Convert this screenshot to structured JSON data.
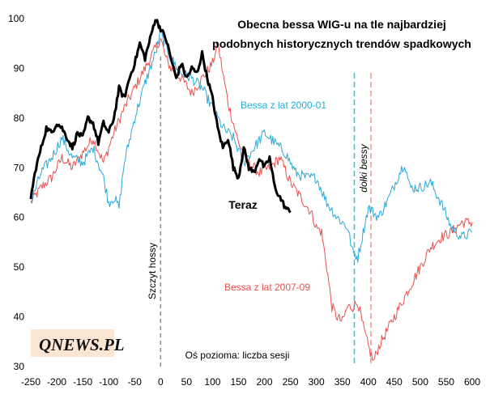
{
  "chart_data": {
    "type": "line",
    "title": [
      "Obecna bessa WIG-u na tle najbardziej",
      "podobnych historycznych trendów spadkowych"
    ],
    "xlabel": "Oś pozioma: liczba sesji",
    "ylabel": "",
    "xlim": [
      -250,
      600
    ],
    "ylim": [
      30,
      100
    ],
    "xticks": [
      "-250",
      "-200",
      "-150",
      "-100",
      "-50",
      "0",
      "50",
      "100",
      "150",
      "200",
      "250",
      "300",
      "350",
      "400",
      "450",
      "500",
      "550",
      "600"
    ],
    "yticks": [
      "30",
      "40",
      "50",
      "60",
      "70",
      "80",
      "90",
      "100"
    ],
    "series": [
      {
        "name": "Bessa z lat 2007-09",
        "color": "#e8504c",
        "x": [
          -250,
          -230,
          -210,
          -190,
          -170,
          -150,
          -130,
          -110,
          -90,
          -70,
          -50,
          -30,
          -10,
          0,
          10,
          20,
          40,
          60,
          80,
          100,
          110,
          120,
          130,
          150,
          170,
          190,
          210,
          230,
          250,
          270,
          290,
          300,
          310,
          320,
          330,
          340,
          350,
          360,
          370,
          380,
          390,
          400,
          410,
          420,
          440,
          460,
          480,
          500,
          520,
          540,
          560,
          580,
          600
        ],
        "y": [
          63,
          66,
          68,
          72,
          70,
          73,
          76,
          71,
          77,
          82,
          86,
          90,
          94,
          96,
          92,
          90,
          88,
          85,
          88,
          91,
          95,
          89,
          83,
          75,
          71,
          69,
          70,
          72,
          67,
          64,
          61,
          58,
          57,
          50,
          42,
          40,
          39,
          42,
          42,
          43,
          38,
          34,
          31,
          34,
          38,
          42,
          46,
          50,
          54,
          56,
          57,
          59,
          59
        ]
      },
      {
        "name": "Bessa z lat 2000-01",
        "color": "#2aa9d8",
        "x": [
          -250,
          -230,
          -210,
          -190,
          -170,
          -150,
          -130,
          -110,
          -100,
          -90,
          -80,
          -70,
          -50,
          -30,
          -10,
          0,
          20,
          40,
          60,
          80,
          100,
          120,
          140,
          160,
          180,
          200,
          220,
          240,
          260,
          280,
          300,
          320,
          340,
          360,
          370,
          380,
          390,
          400,
          410,
          420,
          440,
          460,
          470,
          480,
          500,
          520,
          540,
          560,
          580,
          600
        ],
        "y": [
          63,
          69,
          72,
          76,
          72,
          71,
          74,
          68,
          63,
          64,
          62,
          71,
          80,
          87,
          93,
          97,
          92,
          89,
          88,
          86,
          82,
          78,
          76,
          71,
          74,
          77,
          75,
          73,
          69,
          68,
          68,
          63,
          60,
          58,
          53,
          52,
          57,
          62,
          61,
          60,
          64,
          69,
          71,
          66,
          66,
          67,
          63,
          58,
          56,
          57
        ]
      },
      {
        "name": "Teraz",
        "color": "#000000",
        "x": [
          -250,
          -240,
          -230,
          -220,
          -210,
          -200,
          -190,
          -180,
          -170,
          -160,
          -150,
          -140,
          -130,
          -120,
          -110,
          -100,
          -90,
          -80,
          -70,
          -60,
          -50,
          -40,
          -30,
          -20,
          -10,
          -5,
          0,
          10,
          20,
          30,
          40,
          50,
          60,
          70,
          80,
          90,
          100,
          110,
          120,
          130,
          140,
          150,
          160,
          170,
          180,
          190,
          200,
          210,
          220,
          230,
          240,
          250
        ],
        "y": [
          64,
          70,
          74,
          78,
          77,
          79,
          78,
          76,
          74,
          77,
          76,
          80,
          79,
          75,
          79,
          77,
          80,
          86,
          84,
          88,
          91,
          95,
          92,
          96,
          100,
          99,
          98,
          96,
          92,
          88,
          91,
          88,
          90,
          89,
          93,
          88,
          84,
          78,
          74,
          76,
          70,
          68,
          74,
          70,
          69,
          72,
          70,
          72,
          66,
          64,
          62,
          61
        ]
      }
    ],
    "annotations": {
      "series_2007": "Bessa z lat 2007-09",
      "series_2000": "Bessa z lat 2000-01",
      "series_now": "Teraz",
      "peak_label": "Szczyt hossy",
      "peak_x": 0,
      "trough_label": "dołki bessy",
      "trough_2000_x": 373,
      "trough_2007_x": 405
    },
    "logo": "QNEWS.PL"
  }
}
